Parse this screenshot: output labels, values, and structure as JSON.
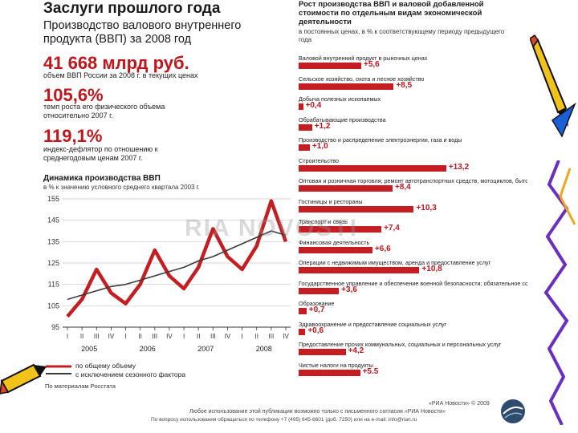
{
  "header": {
    "title": "Заслуги прошлого года",
    "subtitle": "Производство валового внутреннего продукта (ВВП) за 2008 год"
  },
  "kpis": [
    {
      "value": "41 668 млрд руб.",
      "desc": "объем ВВП России за 2008 г. в текущих ценах"
    },
    {
      "value": "105,6%",
      "desc": "темп роста его физического объема относительно 2007 г."
    },
    {
      "value": "119,1%",
      "desc": "индекс-дефлятор по отношению к среднегодовым ценам 2007 г."
    }
  ],
  "line_chart": {
    "title": "Динамика производства ВВП",
    "subtitle": "в % к значению условного среднего квартала 2003 г.",
    "source": "По материалам Росстата",
    "legend": [
      "по общему объему",
      "с исключением сезонного фактора"
    ]
  },
  "bar_chart": {
    "title": "Рост производства ВВП и валовой добавленной стоимости по отдельным видам экономической деятельности",
    "subtitle": "в постоянных ценах, в % к соответствующему периоду предыдущего года"
  },
  "footer": {
    "line1": "«РИА Новости» © 2009",
    "line2": "Любое использование этой публикации возможно только с письменного согласия «РИА Новости»",
    "line3": "По вопросу использования обращаться по телефону +7 (495) 645-6601 (доб. 7250) или на e-mail: info@rian.ru"
  },
  "watermark": "RIA NOVOSTI",
  "colors": {
    "accent": "#c41e22",
    "dark": "#3a3a3a"
  },
  "chart_data": [
    {
      "type": "line",
      "title": "Динамика производства ВВП",
      "ylabel": "в % к значению условного среднего квартала 2003 г.",
      "ylim": [
        95,
        155
      ],
      "yticks": [
        95,
        105,
        115,
        125,
        135,
        145,
        155
      ],
      "categories": [
        "I",
        "II",
        "III",
        "IV",
        "I",
        "II",
        "III",
        "IV",
        "I",
        "II",
        "III",
        "IV",
        "I",
        "II",
        "III",
        "IV"
      ],
      "year_labels": [
        "2005",
        "2006",
        "2007",
        "2008"
      ],
      "series": [
        {
          "name": "по общему объему",
          "values": [
            100,
            108,
            122,
            111,
            106,
            115,
            131,
            119,
            113,
            123,
            141,
            128,
            122,
            133,
            154,
            135
          ]
        },
        {
          "name": "с исключением сезонного фактора",
          "values": [
            108,
            110,
            112,
            114,
            115,
            117,
            119,
            121,
            123,
            126,
            128,
            131,
            134,
            137,
            140,
            138
          ]
        }
      ],
      "grid": true
    },
    {
      "type": "bar",
      "orientation": "horizontal",
      "categories": [
        "Валовой внутренний продукт в рыночных ценах",
        "Сельское хозяйство, охота и лесное хозяйство",
        "Добыча полезных ископаемых",
        "Обрабатывающие производства",
        "Производство и распределение электроэнергии, газа и воды",
        "Строительство",
        "Оптовая и розничная торговля; ремонт автотранспортных средств, мотоциклов, бытовых изделий и предметов личного пользования",
        "Гостиницы и рестораны",
        "Транспорт и связь",
        "Финансовая деятельность",
        "Операции с недвижимым имуществом, аренда и предоставление услуг",
        "Государственное управление и обеспечение военной безопасности; обязательное социальное обеспечение",
        "Образование",
        "Здравоохранение и предоставление социальных услуг",
        "Предоставление прочих коммунальных, социальных и персональных услуг",
        "Чистые налоги на продукты"
      ],
      "values": [
        5.6,
        8.5,
        0.4,
        1.2,
        1.0,
        13.2,
        8.4,
        10.3,
        7.4,
        6.6,
        10.8,
        3.6,
        0.7,
        0.6,
        4.2,
        5.5
      ],
      "value_labels": [
        "+5,6",
        "+8,5",
        "+0,4",
        "+1,2",
        "+1,0",
        "+13,2",
        "+8,4",
        "+10,3",
        "+7,4",
        "+6,6",
        "+10,8",
        "+3,6",
        "+0,7",
        "+0,6",
        "+4,2",
        "+5.5"
      ],
      "xlim": [
        0,
        14
      ]
    }
  ]
}
